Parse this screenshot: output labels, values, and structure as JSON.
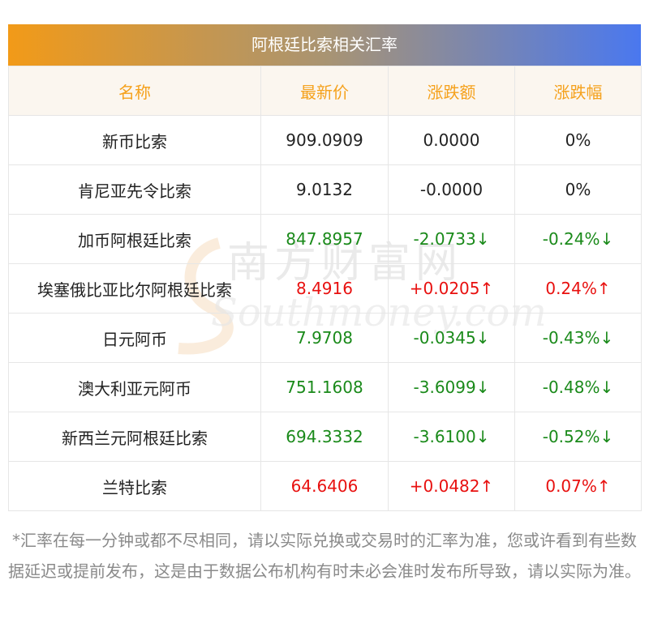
{
  "title": "阿根廷比索相关汇率",
  "headers": [
    "名称",
    "最新价",
    "涨跌额",
    "涨跌幅"
  ],
  "rows": [
    {
      "name": "新币比索",
      "price": "909.0909",
      "change": "0.0000",
      "pct": "0%",
      "trend": "flat"
    },
    {
      "name": "肯尼亚先令比索",
      "price": "9.0132",
      "change": "-0.0000",
      "pct": "0%",
      "trend": "flat"
    },
    {
      "name": "加币阿根廷比索",
      "price": "847.8957",
      "change": "-2.0733↓",
      "pct": "-0.24%↓",
      "trend": "down"
    },
    {
      "name": "埃塞俄比亚比尔阿根廷比索",
      "price": "8.4916",
      "change": "+0.0205↑",
      "pct": "0.24%↑",
      "trend": "up"
    },
    {
      "name": "日元阿币",
      "price": "7.9708",
      "change": "-0.0345↓",
      "pct": "-0.43%↓",
      "trend": "down"
    },
    {
      "name": "澳大利亚元阿币",
      "price": "751.1608",
      "change": "-3.6099↓",
      "pct": "-0.48%↓",
      "trend": "down"
    },
    {
      "name": "新西兰元阿根廷比索",
      "price": "694.3332",
      "change": "-3.6100↓",
      "pct": "-0.52%↓",
      "trend": "down"
    },
    {
      "name": "兰特比索",
      "price": "64.6406",
      "change": "+0.0482↑",
      "pct": "0.07%↑",
      "trend": "up"
    }
  ],
  "watermark": {
    "cn": "南方财富网",
    "en": "Southmoney.com"
  },
  "footnote": "*汇率在每一分钟或都不尽相同，请以实际兑换或交易时的汇率为准，您或许看到有些数据延迟或提前发布，这是由于数据公布机构有时未必会准时发布所导致，请以实际为准。",
  "colors": {
    "up": "#e8100f",
    "down": "#1a8a1a",
    "flat": "#222222",
    "header_text": "#f5a11c",
    "title_gradient": [
      "#f29a18",
      "#4a78ef"
    ]
  }
}
